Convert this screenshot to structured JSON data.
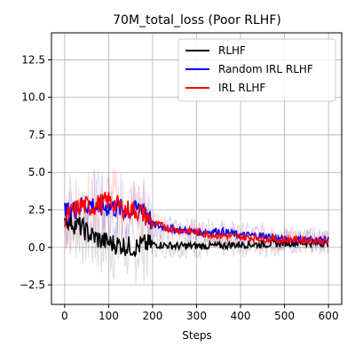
{
  "chart_data": {
    "type": "line",
    "title": "70M_total_loss (Poor RLHF)",
    "xlabel": "Steps",
    "ylabel": "",
    "xlim": [
      -30,
      630
    ],
    "ylim": [
      -3.8,
      14.3
    ],
    "xticks": [
      0,
      100,
      200,
      300,
      400,
      500,
      600
    ],
    "yticks": [
      -2.5,
      0.0,
      2.5,
      5.0,
      7.5,
      10.0,
      12.5
    ],
    "xtick_labels": [
      "0",
      "100",
      "200",
      "300",
      "400",
      "500",
      "600"
    ],
    "ytick_labels": [
      "−2.5",
      "0.0",
      "2.5",
      "5.0",
      "7.5",
      "10.0",
      "12.5"
    ],
    "grid": true,
    "legend_position": "top-right",
    "series": [
      {
        "name": "RLHF",
        "color": "#000000",
        "x": [
          0,
          20,
          40,
          60,
          80,
          100,
          120,
          140,
          160,
          180,
          200,
          250,
          300,
          350,
          400,
          450,
          500,
          550,
          600
        ],
        "y": [
          2.0,
          1.6,
          1.3,
          0.8,
          0.5,
          0.3,
          0.2,
          0.1,
          0.0,
          0.2,
          0.2,
          0.1,
          0.1,
          0.1,
          0.2,
          0.2,
          0.3,
          0.3,
          0.3
        ]
      },
      {
        "name": "Random IRL RLHF",
        "color": "#0000ff",
        "x": [
          0,
          20,
          40,
          60,
          80,
          100,
          120,
          140,
          160,
          180,
          200,
          250,
          300,
          350,
          400,
          450,
          500,
          550,
          600
        ],
        "y": [
          2.3,
          2.5,
          2.8,
          2.9,
          2.6,
          2.7,
          2.6,
          2.5,
          2.4,
          2.8,
          1.5,
          1.2,
          1.0,
          1.1,
          0.8,
          0.8,
          0.5,
          0.5,
          0.5
        ]
      },
      {
        "name": "IRL RLHF",
        "color": "#ff0000",
        "x": [
          0,
          20,
          40,
          60,
          80,
          100,
          120,
          140,
          160,
          180,
          200,
          250,
          300,
          350,
          400,
          450,
          500,
          550,
          600
        ],
        "y": [
          2.0,
          2.4,
          2.8,
          2.7,
          2.9,
          3.1,
          2.8,
          2.5,
          2.5,
          2.2,
          1.6,
          1.2,
          1.0,
          0.8,
          0.7,
          0.6,
          0.5,
          0.5,
          0.4
        ]
      }
    ]
  }
}
